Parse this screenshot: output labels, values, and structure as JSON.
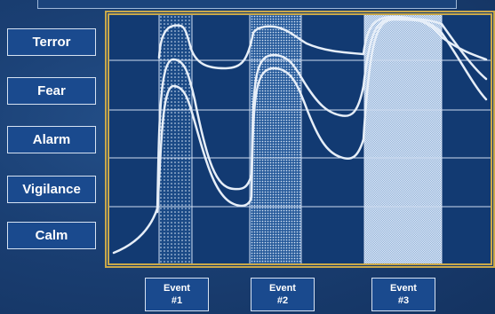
{
  "levels": [
    {
      "label": "Terror"
    },
    {
      "label": "Fear"
    },
    {
      "label": "Alarm"
    },
    {
      "label": "Vigilance"
    },
    {
      "label": "Calm"
    }
  ],
  "events": [
    {
      "line1": "Event",
      "line2": "#1"
    },
    {
      "line1": "Event",
      "line2": "#2"
    },
    {
      "line1": "Event",
      "line2": "#3"
    }
  ],
  "colors": {
    "background": "#1a3f73",
    "frame": "#c9a84a",
    "curve": "#e6eef8",
    "grid": "#cfdcf0"
  }
}
